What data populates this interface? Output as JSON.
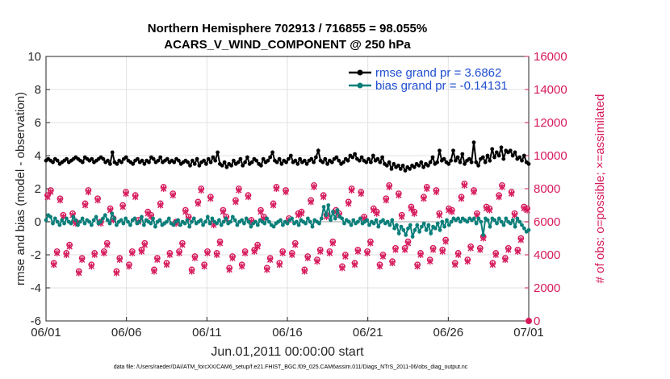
{
  "chart_data": {
    "type": "line",
    "title_line1": "Northern Hemisphere 702913 / 716855 = 98.055%",
    "title_line2": "ACARS_V_WIND_COMPONENT @ 250 hPa",
    "xlabel": "Jun.01,2011 00:00:00 start",
    "ylabel_left": "rmse and bias (model - observation)",
    "ylabel_right": "# of obs: o=possible; ×=assimilated",
    "footnote": "data file: /Users/raeder/DAI/ATM_forcXX/CAM6_setup/f.e21.FHIST_BGC.f09_025.CAM6assim.011/Diags_NTrS_2011-06/obs_diag_output.nc",
    "x_ticks": [
      "06/01",
      "06/06",
      "06/11",
      "06/16",
      "06/21",
      "06/26",
      "07/01"
    ],
    "xlim_days": [
      0,
      30
    ],
    "ylim_left": [
      -6,
      10
    ],
    "yticks_left": [
      "-6",
      "-4",
      "-2",
      "0",
      "2",
      "4",
      "6",
      "8",
      "10"
    ],
    "ylim_right": [
      0,
      16000
    ],
    "yticks_right": [
      "0",
      "2000",
      "4000",
      "6000",
      "8000",
      "10000",
      "12000",
      "14000",
      "16000"
    ],
    "grid": true,
    "legend_position": "top-right",
    "series": [
      {
        "name": "rmse grand pr = 3.6862",
        "color": "#000000",
        "axis": "left",
        "values": [
          3.7,
          3.8,
          3.7,
          3.6,
          3.8,
          3.7,
          3.5,
          3.6,
          3.7,
          3.8,
          3.6,
          3.7,
          3.8,
          3.9,
          3.8,
          3.7,
          3.6,
          3.9,
          3.8,
          3.7,
          3.8,
          3.6,
          3.7,
          3.8,
          3.9,
          3.8,
          3.6,
          3.7,
          3.5,
          4.2,
          3.6,
          3.5,
          3.7,
          3.6,
          3.8,
          3.9,
          3.7,
          3.6,
          3.5,
          3.7,
          3.8,
          3.6,
          3.7,
          3.5,
          3.7,
          3.6,
          3.9,
          3.8,
          3.6,
          3.7,
          3.9,
          3.6,
          3.7,
          3.8,
          3.6,
          3.7,
          3.6,
          3.8,
          3.7,
          3.5,
          3.6,
          3.7,
          3.6,
          3.4,
          3.7,
          3.5,
          3.8,
          3.4,
          3.6,
          3.7,
          3.5,
          3.8,
          3.6,
          3.9,
          3.7,
          4.2,
          3.5,
          3.4,
          3.6,
          3.3,
          3.5,
          3.4,
          3.7,
          3.5,
          3.6,
          3.8,
          3.4,
          3.6,
          3.9,
          3.5,
          3.6,
          3.8,
          3.7,
          3.5,
          3.4,
          3.8,
          3.6,
          3.7,
          3.9,
          4.2,
          3.7,
          3.6,
          3.8,
          3.5,
          3.7,
          3.6,
          3.8,
          4.0,
          3.6,
          3.7,
          3.5,
          3.8,
          3.6,
          3.7,
          3.5,
          3.7,
          3.8,
          3.6,
          3.9,
          4.3,
          3.7,
          3.6,
          3.8,
          3.5,
          3.7,
          3.6,
          3.8,
          3.9,
          3.7,
          3.5,
          3.6,
          3.8,
          3.7,
          4.0,
          3.9,
          4.1,
          3.8,
          3.7,
          3.9,
          3.7,
          3.6,
          3.8,
          3.6,
          4.0,
          3.7,
          3.8,
          3.6,
          3.9,
          3.5,
          3.4,
          3.6,
          3.2,
          3.5,
          3.3,
          3.4,
          3.2,
          3.4,
          3.1,
          3.3,
          3.2,
          3.4,
          3.3,
          3.5,
          3.4,
          3.6,
          3.3,
          3.5,
          3.4,
          3.6,
          3.9,
          3.5,
          3.6,
          4.3,
          3.7,
          3.8,
          3.6,
          3.5,
          3.7,
          4.3,
          3.7,
          3.9,
          3.6,
          4.1,
          3.5,
          3.7,
          3.8,
          3.6,
          4.8,
          3.6,
          3.4,
          3.8,
          3.9,
          3.6,
          4.0,
          3.7,
          4.4,
          3.9,
          4.2,
          4.0,
          4.5,
          3.8,
          4.3,
          4.2,
          4.3,
          4.0,
          4.2,
          3.8,
          3.9,
          3.7,
          4.0,
          3.6,
          3.5
        ]
      },
      {
        "name": "bias grand pr = -0.14131",
        "color": "#0a7f7a",
        "axis": "left",
        "values": [
          0.1,
          0.4,
          0.3,
          -0.1,
          0.2,
          0.0,
          -0.2,
          0.1,
          -0.1,
          0.2,
          0.0,
          -0.1,
          0.3,
          0.1,
          -0.2,
          0.0,
          0.2,
          -0.1,
          0.1,
          0.0,
          -0.2,
          0.1,
          0.3,
          -0.1,
          0.0,
          0.2,
          0.4,
          0.1,
          -0.1,
          0.5,
          0.2,
          -0.2,
          0.0,
          0.1,
          -0.1,
          0.2,
          0.0,
          -0.2,
          0.1,
          0.2,
          -0.1,
          0.0,
          0.3,
          -0.2,
          0.1,
          0.0,
          -0.1,
          0.2,
          -0.3,
          0.0,
          0.1,
          -0.2,
          -0.1,
          0.0,
          0.2,
          -0.1,
          -0.2,
          0.0,
          0.1,
          -0.2,
          0.0,
          -0.1,
          0.1,
          -0.3,
          0.0,
          0.2,
          -0.1,
          0.0,
          0.1,
          -0.2,
          0.0,
          0.3,
          -0.1,
          0.2,
          0.0,
          -0.1,
          0.1,
          -0.2,
          0.0,
          0.2,
          -0.1,
          0.0,
          0.3,
          0.1,
          -0.2,
          0.0,
          0.1,
          -0.1,
          0.2,
          0.0,
          -0.3,
          -0.1,
          0.0,
          -0.2,
          0.1,
          0.0,
          -0.1,
          0.2,
          0.0,
          -0.2,
          -0.3,
          -0.1,
          0.0,
          0.1,
          -0.2,
          0.0,
          -0.1,
          0.1,
          0.2,
          -0.1,
          0.0,
          -0.2,
          0.1,
          0.0,
          -0.1,
          0.2,
          0.0,
          -0.3,
          0.1,
          0.0,
          -0.1,
          0.2,
          0.9,
          0.4,
          1.0,
          0.1,
          0.6,
          0.2,
          0.7,
          0.3,
          0.2,
          -0.1,
          0.1,
          0.0,
          -0.2,
          0.1,
          -0.1,
          0.0,
          0.2,
          -0.1,
          0.0,
          0.1,
          -0.2,
          0.0,
          -0.1,
          0.1,
          -0.3,
          0.0,
          0.1,
          -0.1,
          0.0,
          -0.2,
          0.1,
          -0.4,
          -0.2,
          -0.7,
          -0.3,
          -0.5,
          -0.8,
          -0.4,
          -0.2,
          -0.9,
          -0.5,
          -0.2,
          -0.6,
          -0.3,
          -0.1,
          -0.5,
          -0.2,
          -0.7,
          -0.3,
          -0.4,
          -0.1,
          -0.5,
          0.0,
          -0.3,
          0.1,
          -0.2,
          0.0,
          0.2,
          0.1,
          0.2,
          0.0,
          0.2,
          0.1,
          0.0,
          0.2,
          0.1,
          0.2,
          -0.1,
          0.2,
          0.0,
          -0.8,
          0.2,
          0.1,
          -0.3,
          0.2,
          0.1,
          -0.1,
          0.2,
          0.0,
          -0.2,
          0.2,
          0.0,
          -0.1,
          0.1,
          -0.3,
          0.2,
          0.0,
          -0.2,
          -0.4,
          -0.6,
          -0.5
        ]
      }
    ],
    "obs_series": [
      {
        "name": "possible",
        "marker": "o",
        "color": "#d6195c",
        "axis": "right",
        "values": [
          7600,
          7900,
          3500,
          4200,
          7400,
          6400,
          4100,
          4600,
          6500,
          6000,
          3000,
          3800,
          7100,
          7900,
          3400,
          4100,
          7400,
          6000,
          4200,
          4700,
          6800,
          6200,
          3000,
          3800,
          7000,
          7800,
          3400,
          4200,
          7600,
          6100,
          4300,
          4700,
          6600,
          6400,
          3100,
          3800,
          7100,
          8100,
          3500,
          4100,
          7700,
          6000,
          4200,
          4700,
          6700,
          6300,
          3100,
          3900,
          7200,
          8000,
          3400,
          4200,
          7500,
          5900,
          4100,
          4800,
          6700,
          6300,
          3200,
          3900,
          7300,
          8000,
          3400,
          4200,
          7600,
          6100,
          4300,
          4600,
          6700,
          6300,
          3200,
          3800,
          7100,
          8100,
          3500,
          4200,
          7900,
          6200,
          4100,
          4700,
          6500,
          6600,
          3100,
          3900,
          7300,
          8200,
          3700,
          4300,
          7600,
          6400,
          4200,
          4800,
          6700,
          6500,
          3300,
          4000,
          7200,
          8000,
          3500,
          4300,
          7800,
          6300,
          4200,
          4800,
          6800,
          6600,
          3400,
          4000,
          7400,
          8200,
          3600,
          4400,
          7700,
          6400,
          4400,
          4800,
          6900,
          6600,
          3400,
          4100,
          7500,
          8100,
          3700,
          4400,
          7900,
          6500,
          4300,
          4900,
          6800,
          6700,
          3500,
          4100,
          7500,
          8300,
          3700,
          4500,
          7900,
          6500,
          4400,
          5100,
          6900,
          6800,
          3500,
          4100,
          7600,
          8200,
          3800,
          4400,
          7800,
          6500,
          4300,
          5000,
          6900,
          6800
        ]
      },
      {
        "name": "assimilated",
        "marker": "×",
        "color": "#d6195c",
        "axis": "right",
        "values": [
          7500,
          7800,
          3400,
          4100,
          7300,
          6300,
          4000,
          4500,
          6400,
          5900,
          2900,
          3700,
          7000,
          7800,
          3300,
          4000,
          7300,
          5900,
          4100,
          4600,
          6700,
          6100,
          2900,
          3700,
          6900,
          7700,
          3300,
          4100,
          7500,
          6000,
          4200,
          4600,
          6500,
          6300,
          3000,
          3700,
          7000,
          8000,
          3400,
          4000,
          7600,
          5900,
          4100,
          4600,
          6600,
          6200,
          3000,
          3800,
          7100,
          7900,
          3300,
          4100,
          7400,
          5800,
          4000,
          4700,
          6600,
          6200,
          3100,
          3800,
          7200,
          7900,
          3300,
          4100,
          7500,
          6000,
          4200,
          4500,
          6600,
          6200,
          3100,
          3700,
          7000,
          8000,
          3400,
          4100,
          7800,
          6100,
          4000,
          4600,
          6400,
          6500,
          3000,
          3800,
          7200,
          8100,
          3600,
          4200,
          7500,
          6300,
          4100,
          4700,
          6600,
          6400,
          3200,
          3900,
          7100,
          7900,
          3400,
          4200,
          7700,
          6200,
          4100,
          4700,
          6700,
          6500,
          3300,
          3900,
          7300,
          8100,
          3500,
          4300,
          7600,
          6300,
          4300,
          4700,
          6800,
          6500,
          3300,
          4000,
          7400,
          8000,
          3600,
          4300,
          7800,
          6400,
          4200,
          4800,
          6700,
          6600,
          3400,
          4000,
          7400,
          8200,
          3600,
          4400,
          7800,
          6400,
          4300,
          5000,
          6800,
          6700,
          3400,
          4000,
          7500,
          8100,
          3700,
          4300,
          7700,
          6400,
          4200,
          4900,
          6800,
          6700
        ]
      }
    ],
    "endpoint_obs": {
      "x_day": 30,
      "value": 0
    }
  }
}
